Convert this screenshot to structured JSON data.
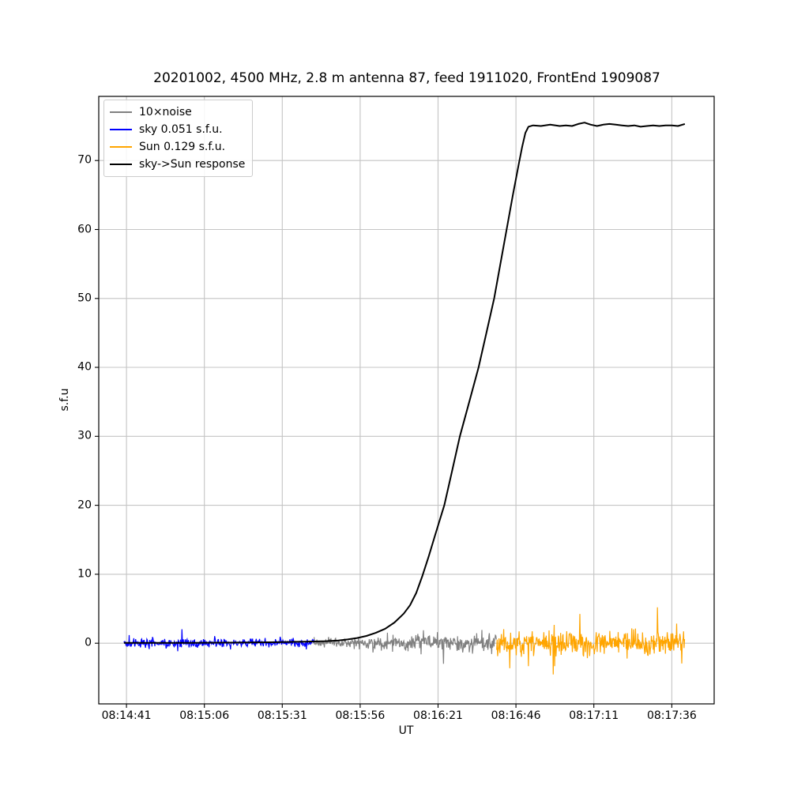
{
  "figure": {
    "background": "#ffffff",
    "grid_color": "#c4c4c4",
    "spine_color": "#000000"
  },
  "chart_data": {
    "type": "line",
    "title": "20201002, 4500 MHz, 2.8 m antenna 87, feed 1911020, FrontEnd 1909087",
    "xlabel": "UT",
    "ylabel": "s.f.u",
    "grid": true,
    "legend_position": "upper left",
    "x_axis": {
      "tick_labels": [
        "08:14:41",
        "08:15:06",
        "08:15:31",
        "08:15:56",
        "08:16:21",
        "08:16:46",
        "08:17:11",
        "08:17:36"
      ],
      "tick_seconds": [
        0,
        25,
        50,
        75,
        100,
        125,
        150,
        175
      ],
      "range_seconds": [
        -8.9,
        188.6
      ]
    },
    "y_axis": {
      "ticks": [
        0,
        10,
        20,
        30,
        40,
        50,
        60,
        70
      ],
      "range": [
        -8.8,
        79.3
      ]
    },
    "series": [
      {
        "name": "10×noise",
        "kind": "noise",
        "color": "#808080",
        "t_start": 60.2,
        "t_end": 118.8,
        "mean": 0.05,
        "sigma_start": 0.3,
        "sigma_end": 0.75,
        "seed": 7
      },
      {
        "name": "sky 0.051 s.f.u.",
        "kind": "noise",
        "color": "#0000ff",
        "t_start": -0.8,
        "t_end": 60.2,
        "mean": 0.02,
        "sigma_start": 0.32,
        "sigma_end": 0.34,
        "seed": 3
      },
      {
        "name": "Sun 0.129 s.f.u.",
        "kind": "noise",
        "color": "#ffa500",
        "t_start": 118.8,
        "t_end": 179.2,
        "mean": 0.0,
        "sigma_start": 0.85,
        "sigma_end": 0.85,
        "seed": 11
      },
      {
        "name": "sky->Sun response",
        "kind": "line",
        "color": "#000000",
        "points": [
          [
            -0.8,
            0.05
          ],
          [
            10,
            0.05
          ],
          [
            20,
            0.06
          ],
          [
            30,
            0.08
          ],
          [
            40,
            0.1
          ],
          [
            48,
            0.15
          ],
          [
            55,
            0.2
          ],
          [
            60,
            0.25
          ],
          [
            64,
            0.3
          ],
          [
            68,
            0.4
          ],
          [
            71,
            0.55
          ],
          [
            74,
            0.75
          ],
          [
            77,
            1.05
          ],
          [
            80,
            1.5
          ],
          [
            83,
            2.1
          ],
          [
            86,
            3.0
          ],
          [
            89,
            4.3
          ],
          [
            91,
            5.5
          ],
          [
            93,
            7.3
          ],
          [
            95,
            9.8
          ],
          [
            97,
            12.6
          ],
          [
            99,
            15.6
          ],
          [
            102,
            20
          ],
          [
            104.5,
            25
          ],
          [
            107,
            30
          ],
          [
            110,
            35
          ],
          [
            113,
            40
          ],
          [
            115.5,
            45
          ],
          [
            118,
            50
          ],
          [
            120,
            55
          ],
          [
            122,
            60
          ],
          [
            124,
            65
          ],
          [
            125.9,
            69.5
          ],
          [
            127,
            72
          ],
          [
            128,
            74
          ],
          [
            129,
            74.9
          ],
          [
            130.5,
            75.1
          ],
          [
            133,
            75.0
          ],
          [
            136,
            75.2
          ],
          [
            139,
            75.0
          ],
          [
            141,
            75.1
          ],
          [
            143,
            75.0
          ],
          [
            145,
            75.3
          ],
          [
            147,
            75.5
          ],
          [
            149,
            75.2
          ],
          [
            151,
            75.0
          ],
          [
            153,
            75.2
          ],
          [
            155,
            75.3
          ],
          [
            157,
            75.2
          ],
          [
            159,
            75.1
          ],
          [
            161,
            75.0
          ],
          [
            163,
            75.1
          ],
          [
            165,
            74.9
          ],
          [
            167,
            75.0
          ],
          [
            169,
            75.1
          ],
          [
            171,
            75.0
          ],
          [
            173,
            75.1
          ],
          [
            175,
            75.1
          ],
          [
            177,
            75.0
          ],
          [
            179.2,
            75.3
          ]
        ]
      }
    ]
  }
}
